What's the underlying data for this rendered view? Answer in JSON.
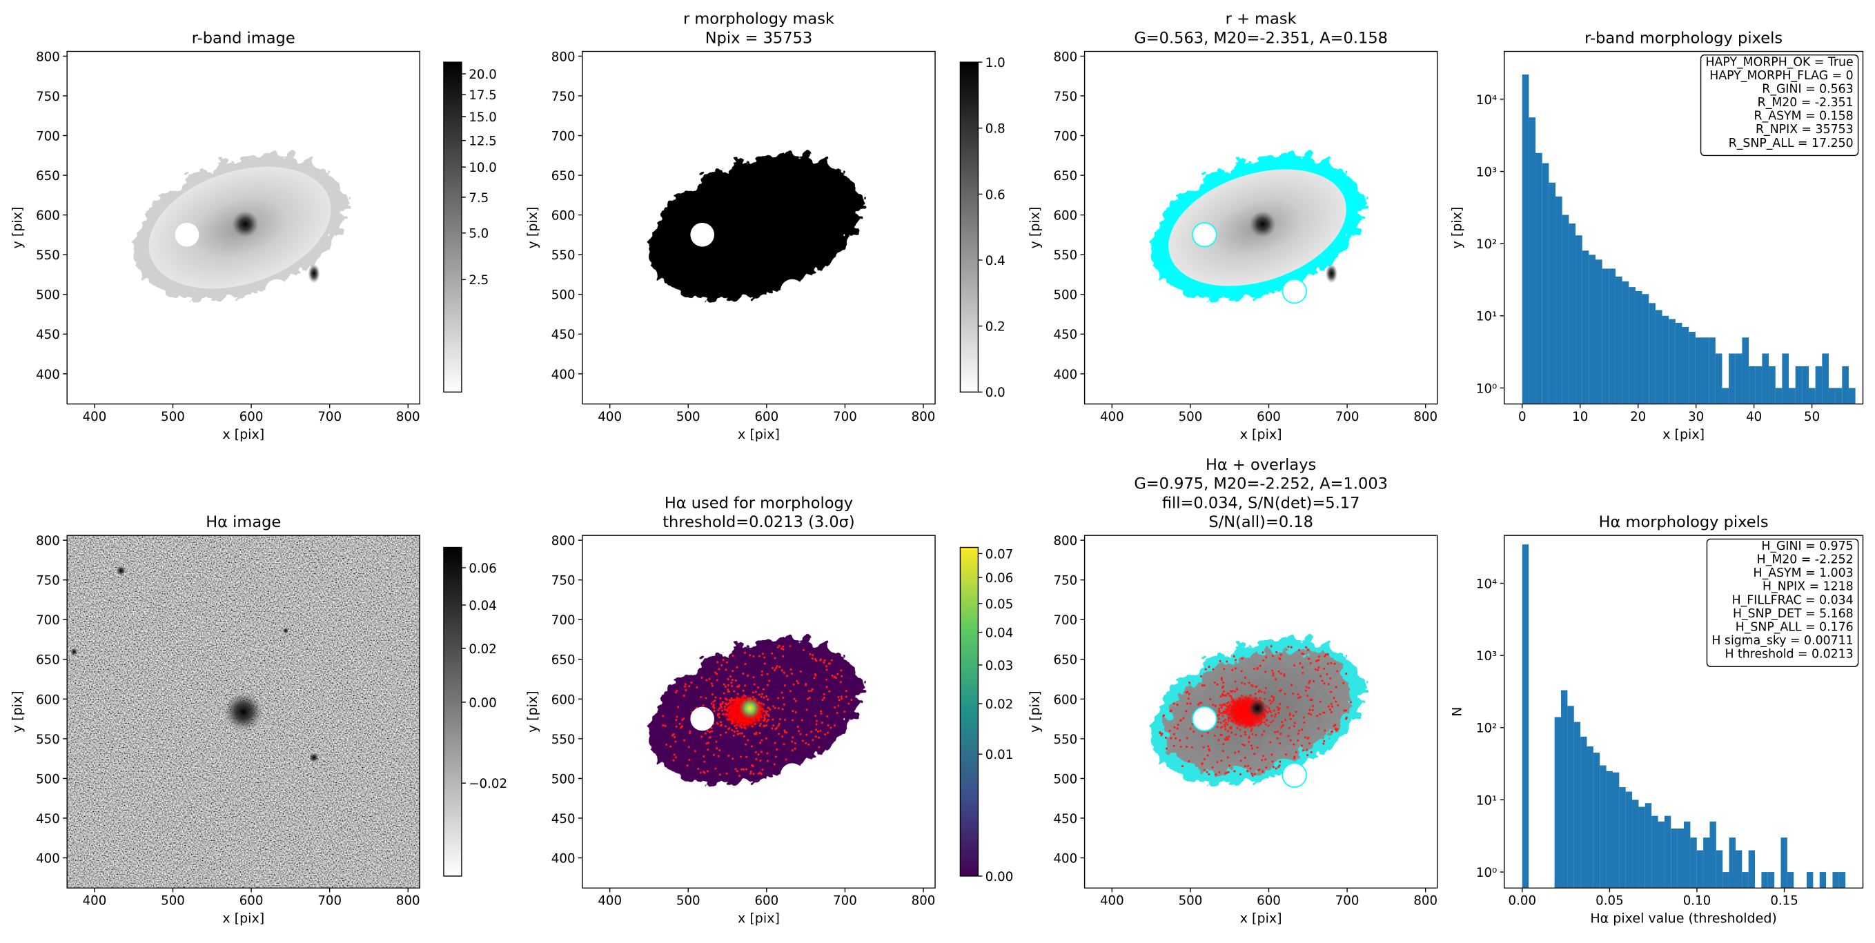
{
  "chart_data": [
    {
      "type": "image",
      "title": [
        "r-band image"
      ],
      "xlabel": "x [pix]",
      "ylabel": "y [pix]",
      "xlim": [
        365,
        815
      ],
      "ylim": [
        362,
        806
      ],
      "xticks": [
        400,
        500,
        600,
        700,
        800
      ],
      "yticks": [
        400,
        450,
        500,
        550,
        600,
        650,
        700,
        750,
        800
      ],
      "colorbar": {
        "cmap": "gray_r",
        "scale": "sqrt",
        "lim": [
          0,
          21.5
        ],
        "ticks": [
          2.5,
          {
            "value": 5,
            "label": "5.0"
          },
          7.5,
          {
            "value": 10,
            "label": "10.0"
          },
          12.5,
          {
            "value": 15,
            "label": "15.0"
          },
          17.5,
          {
            "value": 20,
            "label": "20.0"
          }
        ]
      }
    },
    {
      "type": "image",
      "title": [
        "r morphology mask",
        "Npix = 35753"
      ],
      "xlabel": "x [pix]",
      "ylabel": "y [pix]",
      "xlim": [
        365,
        815
      ],
      "ylim": [
        362,
        806
      ],
      "xticks": [
        400,
        500,
        600,
        700,
        800
      ],
      "yticks": [
        400,
        450,
        500,
        550,
        600,
        650,
        700,
        750,
        800
      ],
      "colorbar": {
        "cmap": "gray_r",
        "scale": "linear",
        "lim": [
          0,
          1
        ],
        "ticks": [
          {
            "value": 0,
            "label": "0.0"
          },
          0.2,
          0.4,
          0.6,
          0.8,
          {
            "value": 1,
            "label": "1.0"
          }
        ]
      }
    },
    {
      "type": "image",
      "title": [
        "r + mask",
        "G=0.563, M20=-2.351, A=0.158"
      ],
      "xlabel": "x [pix]",
      "ylabel": "y [pix]",
      "xlim": [
        365,
        815
      ],
      "ylim": [
        362,
        806
      ],
      "xticks": [
        400,
        500,
        600,
        700,
        800
      ],
      "yticks": [
        400,
        450,
        500,
        550,
        600,
        650,
        700,
        750,
        800
      ]
    },
    {
      "type": "histogram",
      "title": [
        "r-band morphology pixels"
      ],
      "xlabel": "x [pix]",
      "ylabel": "y [pix]",
      "color": "#1f77b4",
      "log_y": true,
      "bins": [
        0,
        1.15,
        2.3,
        3.45,
        4.6,
        5.75,
        6.9,
        8.05,
        9.2,
        10.35,
        11.5,
        12.65,
        13.8,
        14.95,
        16.1,
        17.25,
        18.4,
        19.55,
        20.7,
        21.85,
        23,
        24.15,
        25.3,
        26.45,
        27.6,
        28.75,
        29.9,
        31.05,
        32.2,
        33.35,
        34.5,
        35.65,
        36.8,
        37.95,
        39.1,
        40.25,
        41.4,
        42.55,
        43.7,
        44.85,
        46,
        47.15,
        48.3,
        49.45,
        50.6,
        51.75,
        52.9,
        54.05,
        55.2,
        56.35,
        57.5
      ],
      "values": [
        22000,
        5600,
        1800,
        1300,
        700,
        450,
        250,
        190,
        130,
        80,
        70,
        60,
        45,
        45,
        35,
        30,
        25,
        22,
        20,
        15,
        12,
        10,
        9,
        8,
        7,
        6,
        5,
        5,
        5,
        3,
        1,
        3,
        3,
        5,
        2,
        2,
        3,
        2,
        1,
        3,
        1,
        2,
        2,
        1,
        2,
        3,
        1,
        1,
        2,
        1
      ],
      "xlim": [
        -3.1,
        58.8
      ],
      "ylim": [
        0.6,
        46000
      ],
      "xticks": [
        0,
        10,
        20,
        30,
        40,
        50
      ],
      "yticks": [
        {
          "value": 1,
          "label": "10⁰"
        },
        {
          "value": 10,
          "label": "10¹"
        },
        {
          "value": 100,
          "label": "10²"
        },
        {
          "value": 1000,
          "label": "10³"
        },
        {
          "value": 10000,
          "label": "10⁴"
        }
      ],
      "annotation": [
        "HAPY_MORPH_OK = True",
        "HAPY_MORPH_FLAG = 0",
        "R_GINI = 0.563",
        "R_M20 = -2.351",
        "R_ASYM = 0.158",
        "R_NPIX = 35753",
        "R_SNP_ALL = 17.250"
      ]
    },
    {
      "type": "image",
      "title": [
        "Hα image"
      ],
      "xlabel": "x [pix]",
      "ylabel": "y [pix]",
      "xlim": [
        365,
        815
      ],
      "ylim": [
        362,
        806
      ],
      "xticks": [
        400,
        500,
        600,
        700,
        800
      ],
      "yticks": [
        400,
        450,
        500,
        550,
        600,
        650,
        700,
        750,
        800
      ],
      "colorbar": {
        "cmap": "gray_r",
        "scale": "sqrt",
        "lim": [
          -0.028,
          0.072
        ],
        "ticks": [
          {
            "value": -0.02,
            "label": "−0.02"
          },
          {
            "value": 0,
            "label": "0.00"
          },
          0.02,
          0.04,
          0.06
        ]
      }
    },
    {
      "type": "image",
      "title": [
        "Hα used for morphology",
        "threshold=0.0213 (3.0σ)"
      ],
      "xlabel": "x [pix]",
      "ylabel": "y [pix]",
      "xlim": [
        365,
        815
      ],
      "ylim": [
        362,
        806
      ],
      "xticks": [
        400,
        500,
        600,
        700,
        800
      ],
      "yticks": [
        400,
        450,
        500,
        550,
        600,
        650,
        700,
        750,
        800
      ],
      "colorbar": {
        "cmap": "viridis",
        "scale": "sqrt",
        "lim": [
          0,
          0.0727
        ],
        "ticks": [
          {
            "value": 0,
            "label": "0.00"
          },
          0.01,
          0.02,
          0.03,
          0.04,
          0.05,
          0.06,
          0.07
        ]
      }
    },
    {
      "type": "image",
      "title": [
        "Hα + overlays",
        "G=0.975, M20=-2.252, A=1.003",
        "fill=0.034, S/N(det)=5.17",
        "S/N(all)=0.18"
      ],
      "xlabel": "x [pix]",
      "ylabel": "y [pix]",
      "xlim": [
        365,
        815
      ],
      "ylim": [
        362,
        806
      ],
      "xticks": [
        400,
        500,
        600,
        700,
        800
      ],
      "yticks": [
        400,
        450,
        500,
        550,
        600,
        650,
        700,
        750,
        800
      ]
    },
    {
      "type": "histogram",
      "title": [
        "Hα morphology pixels"
      ],
      "xlabel": "Hα pixel value (thresholded)",
      "ylabel": "N",
      "color": "#1f77b4",
      "log_y": true,
      "bins": [
        0,
        0.0037,
        0.0074,
        0.0111,
        0.0148,
        0.0185,
        0.0222,
        0.0259,
        0.0296,
        0.0333,
        0.037,
        0.0407,
        0.0444,
        0.0481,
        0.0518,
        0.0555,
        0.0592,
        0.0629,
        0.0666,
        0.0703,
        0.074,
        0.0777,
        0.0814,
        0.0851,
        0.0888,
        0.0925,
        0.0962,
        0.0999,
        0.1036,
        0.1073,
        0.111,
        0.1147,
        0.1184,
        0.1221,
        0.1258,
        0.1295,
        0.1332,
        0.1369,
        0.1406,
        0.1443,
        0.148,
        0.1517,
        0.1554,
        0.1591,
        0.1628,
        0.1665,
        0.1702,
        0.1739,
        0.1776,
        0.1813,
        0.185
      ],
      "values": [
        34500,
        0,
        0,
        0,
        0,
        140,
        330,
        200,
        120,
        75,
        55,
        45,
        30,
        25,
        24,
        15,
        13,
        10,
        8,
        9,
        6,
        5,
        6,
        4,
        4,
        5,
        3,
        2,
        3,
        5,
        2,
        1,
        3,
        2,
        1,
        2,
        0,
        1,
        1,
        0,
        3,
        1,
        0,
        0,
        1,
        0,
        1,
        0,
        1,
        1
      ],
      "xlim": [
        -0.0103,
        0.195
      ],
      "ylim": [
        0.6,
        46000
      ],
      "xticks": [
        {
          "value": 0,
          "label": "0.00"
        },
        0.05,
        {
          "value": 0.1,
          "label": "0.10"
        },
        0.15
      ],
      "yticks": [
        {
          "value": 1,
          "label": "10⁰"
        },
        {
          "value": 10,
          "label": "10¹"
        },
        {
          "value": 100,
          "label": "10²"
        },
        {
          "value": 1000,
          "label": "10³"
        },
        {
          "value": 10000,
          "label": "10⁴"
        }
      ],
      "annotation": [
        "H_GINI = 0.975",
        "H_M20 = -2.252",
        "H_ASYM = 1.003",
        "H_NPIX = 1218",
        "H_FILLFRAC = 0.034",
        "H_SNP_DET = 5.168",
        "H_SNP_ALL = 0.176",
        "H sigma_sky = 0.00711",
        "H threshold = 0.0213"
      ]
    }
  ]
}
